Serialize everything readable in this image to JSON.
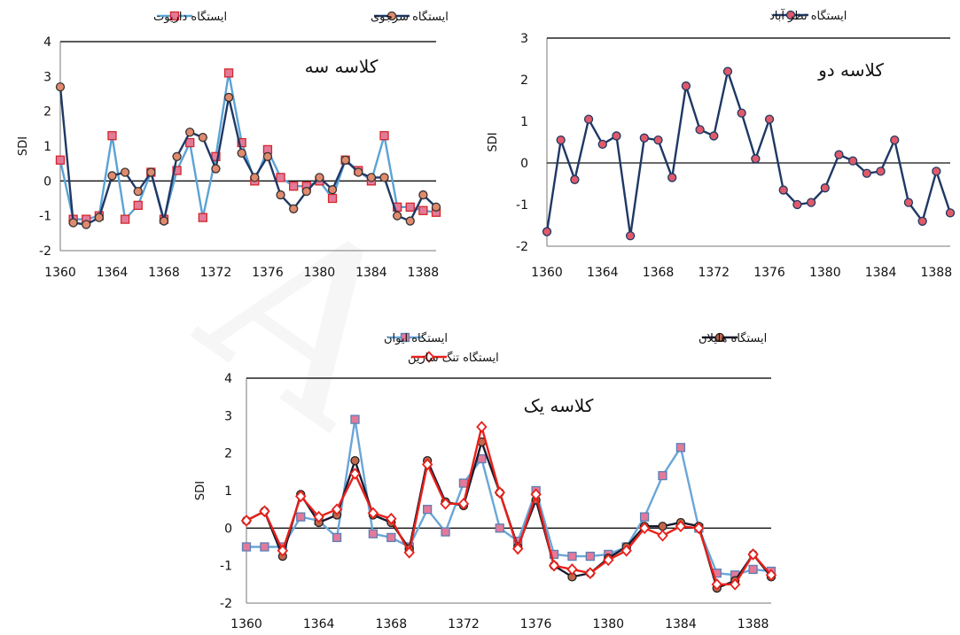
{
  "watermark": "A",
  "chart_data": [
    {
      "type": "line",
      "title": "کلاسه سه",
      "ylabel": "SDI",
      "ylim": [
        -2,
        4
      ],
      "yticks": [
        -2,
        -1,
        0,
        1,
        2,
        3,
        4
      ],
      "xlim": [
        1360,
        1389
      ],
      "xticks": [
        1360,
        1364,
        1368,
        1372,
        1376,
        1380,
        1384,
        1388
      ],
      "x": [
        1360,
        1361,
        1362,
        1363,
        1364,
        1365,
        1366,
        1367,
        1368,
        1369,
        1370,
        1371,
        1372,
        1373,
        1374,
        1375,
        1376,
        1377,
        1378,
        1379,
        1380,
        1381,
        1382,
        1383,
        1384,
        1385,
        1386,
        1387,
        1388,
        1389
      ],
      "legend_position": "top",
      "series": [
        {
          "name": "ایستگاه داریوت",
          "color": "#5ba3d6",
          "marker": "square",
          "marker_fill": "#e37a9a",
          "marker_stroke": "#d3272b",
          "values": [
            0.6,
            -1.1,
            -1.1,
            -1.0,
            1.3,
            -1.1,
            -0.7,
            0.25,
            -1.1,
            0.3,
            1.1,
            -1.05,
            0.7,
            3.1,
            1.1,
            0.0,
            0.9,
            0.1,
            -0.15,
            -0.15,
            0.0,
            -0.5,
            0.6,
            0.3,
            0.0,
            1.3,
            -0.75,
            -0.75,
            -0.85,
            -0.9
          ]
        },
        {
          "name": "ایستگاه سرجوی",
          "color": "#1f3864",
          "marker": "circle",
          "marker_fill": "#e08a6e",
          "marker_stroke": "#333333",
          "values": [
            2.7,
            -1.2,
            -1.25,
            -1.05,
            0.15,
            0.25,
            -0.3,
            0.25,
            -1.15,
            0.7,
            1.4,
            1.25,
            0.35,
            2.4,
            0.8,
            0.1,
            0.7,
            -0.4,
            -0.8,
            -0.3,
            0.1,
            -0.25,
            0.6,
            0.25,
            0.1,
            0.1,
            -1.0,
            -1.15,
            -0.4,
            -0.75
          ]
        }
      ]
    },
    {
      "type": "line",
      "title": "کلاسه دو",
      "ylabel": "SDI",
      "ylim": [
        -2,
        3
      ],
      "yticks": [
        -2,
        -1,
        0,
        1,
        2,
        3
      ],
      "xlim": [
        1360,
        1389
      ],
      "xticks": [
        1360,
        1364,
        1368,
        1372,
        1376,
        1380,
        1384,
        1388
      ],
      "x": [
        1360,
        1361,
        1362,
        1363,
        1364,
        1365,
        1366,
        1367,
        1368,
        1369,
        1370,
        1371,
        1372,
        1373,
        1374,
        1375,
        1376,
        1377,
        1378,
        1379,
        1380,
        1381,
        1382,
        1383,
        1384,
        1385,
        1386,
        1387,
        1388,
        1389
      ],
      "legend_position": "top",
      "series": [
        {
          "name": "ایستگاه نظر آباد",
          "color": "#1f3864",
          "marker": "circle",
          "marker_fill": "#e05a6a",
          "marker_stroke": "#1f3864",
          "values": [
            -1.65,
            0.55,
            -0.4,
            1.05,
            0.45,
            0.65,
            -1.75,
            0.6,
            0.55,
            -0.35,
            1.85,
            0.8,
            0.65,
            2.2,
            1.2,
            0.1,
            1.05,
            -0.65,
            -1.0,
            -0.95,
            -0.6,
            0.2,
            0.05,
            -0.25,
            -0.2,
            0.55,
            -0.95,
            -1.4,
            -0.2,
            -1.2
          ]
        }
      ]
    },
    {
      "type": "line",
      "title": "کلاسه یک",
      "ylabel": "SDI",
      "ylim": [
        -2,
        4
      ],
      "yticks": [
        -2,
        -1,
        0,
        1,
        2,
        3,
        4
      ],
      "xlim": [
        1360,
        1389
      ],
      "xticks": [
        1360,
        1364,
        1368,
        1372,
        1376,
        1380,
        1384,
        1388
      ],
      "x": [
        1360,
        1361,
        1362,
        1363,
        1364,
        1365,
        1366,
        1367,
        1368,
        1369,
        1370,
        1371,
        1372,
        1373,
        1374,
        1375,
        1376,
        1377,
        1378,
        1379,
        1380,
        1381,
        1382,
        1383,
        1384,
        1385,
        1386,
        1387,
        1388,
        1389
      ],
      "legend_position": "top",
      "series": [
        {
          "name": "ایستگاه ایوان",
          "color": "#6aa6d8",
          "marker": "square",
          "marker_fill": "#e37a9a",
          "marker_stroke": "#5a7fb5",
          "values": [
            -0.5,
            -0.5,
            -0.5,
            0.3,
            0.2,
            -0.25,
            2.9,
            -0.15,
            -0.25,
            -0.5,
            0.5,
            -0.1,
            1.2,
            1.85,
            0.0,
            -0.35,
            1.0,
            -0.7,
            -0.75,
            -0.75,
            -0.7,
            -0.5,
            0.3,
            1.4,
            2.15,
            0.0,
            -1.2,
            -1.25,
            -1.1,
            -1.15
          ]
        },
        {
          "name": "ایستگاه هلیلان",
          "color": "#1a1a2e",
          "marker": "circle",
          "marker_fill": "#c0684e",
          "marker_stroke": "#222222",
          "values": [
            0.2,
            0.45,
            -0.75,
            0.9,
            0.15,
            0.35,
            1.8,
            0.35,
            0.15,
            -0.55,
            1.8,
            0.7,
            0.6,
            2.3,
            0.95,
            -0.5,
            0.75,
            -1.0,
            -1.3,
            -1.2,
            -0.8,
            -0.5,
            0.05,
            0.05,
            0.15,
            0.05,
            -1.6,
            -1.4,
            -0.7,
            -1.3
          ]
        },
        {
          "name": "ایستگاه تنگ سازین",
          "color": "#e8201a",
          "marker": "diamond",
          "marker_fill": "#ffffff",
          "marker_stroke": "#e8201a",
          "values": [
            0.2,
            0.45,
            -0.6,
            0.85,
            0.3,
            0.5,
            1.45,
            0.4,
            0.25,
            -0.65,
            1.7,
            0.65,
            0.65,
            2.7,
            0.95,
            -0.55,
            0.9,
            -1.0,
            -1.1,
            -1.2,
            -0.85,
            -0.6,
            0.0,
            -0.2,
            0.05,
            0.0,
            -1.5,
            -1.5,
            -0.7,
            -1.25
          ]
        }
      ]
    }
  ]
}
